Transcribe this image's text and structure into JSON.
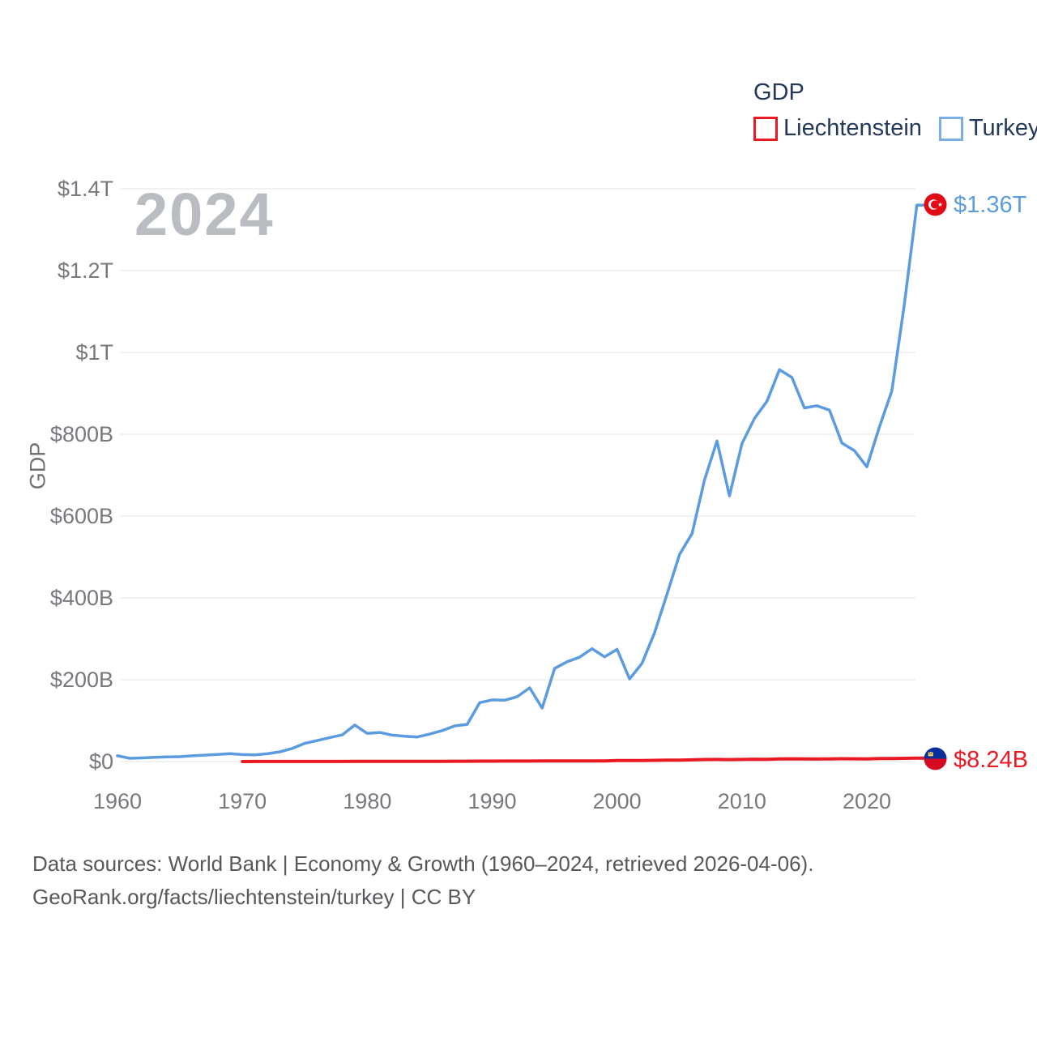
{
  "legend": {
    "title": "GDP",
    "items": [
      {
        "label": "Liechtenstein",
        "color": "#ea1a24"
      },
      {
        "label": "Turkey",
        "color": "#5b9be0"
      }
    ]
  },
  "watermark": "2024",
  "y_axis": {
    "label": "GDP",
    "ticks": [
      {
        "value_b": 0,
        "label": "$0"
      },
      {
        "value_b": 200,
        "label": "$200B"
      },
      {
        "value_b": 400,
        "label": "$400B"
      },
      {
        "value_b": 600,
        "label": "$600B"
      },
      {
        "value_b": 800,
        "label": "$800B"
      },
      {
        "value_b": 1000,
        "label": "$1T"
      },
      {
        "value_b": 1200,
        "label": "$1.2T"
      },
      {
        "value_b": 1400,
        "label": "$1.4T"
      }
    ]
  },
  "x_axis": {
    "ticks": [
      {
        "value": 1960,
        "label": "1960"
      },
      {
        "value": 1970,
        "label": "1970"
      },
      {
        "value": 1980,
        "label": "1980"
      },
      {
        "value": 1990,
        "label": "1990"
      },
      {
        "value": 2000,
        "label": "2000"
      },
      {
        "value": 2010,
        "label": "2010"
      },
      {
        "value": 2020,
        "label": "2020"
      }
    ]
  },
  "end_labels": {
    "turkey": "$1.36T",
    "liechtenstein": "$8.24B"
  },
  "footer": {
    "line1": "Data sources: World Bank | Economy & Growth (1960–2024, retrieved 2026-04-06).",
    "line2": "GeoRank.org/facts/liechtenstein/turkey | CC BY"
  },
  "chart_data": {
    "type": "line",
    "title": "GDP",
    "ylabel": "GDP",
    "unit": "USD billions",
    "xlim": [
      1960,
      2024
    ],
    "ylim_usd_billions": [
      0,
      1400
    ],
    "grid": "horizontal",
    "legend_position": "top-right",
    "x": [
      1960,
      1961,
      1962,
      1963,
      1964,
      1965,
      1966,
      1967,
      1968,
      1969,
      1970,
      1971,
      1972,
      1973,
      1974,
      1975,
      1976,
      1977,
      1978,
      1979,
      1980,
      1981,
      1982,
      1983,
      1984,
      1985,
      1986,
      1987,
      1988,
      1989,
      1990,
      1991,
      1992,
      1993,
      1994,
      1995,
      1996,
      1997,
      1998,
      1999,
      2000,
      2001,
      2002,
      2003,
      2004,
      2005,
      2006,
      2007,
      2008,
      2009,
      2010,
      2011,
      2012,
      2013,
      2014,
      2015,
      2016,
      2017,
      2018,
      2019,
      2020,
      2021,
      2022,
      2023,
      2024
    ],
    "series": [
      {
        "name": "Liechtenstein",
        "color": "#ea1a24",
        "end_value_label": "$8.24B",
        "values": [
          null,
          null,
          null,
          null,
          null,
          null,
          null,
          null,
          null,
          null,
          0.09,
          0.11,
          0.13,
          0.17,
          0.19,
          0.18,
          0.2,
          0.23,
          0.29,
          0.33,
          0.42,
          0.38,
          0.4,
          0.41,
          0.4,
          0.44,
          0.62,
          0.79,
          0.87,
          0.92,
          1.07,
          1.12,
          1.19,
          1.22,
          1.39,
          1.62,
          1.6,
          1.47,
          1.61,
          1.65,
          2.48,
          2.56,
          2.66,
          2.91,
          3.34,
          3.66,
          4.21,
          4.87,
          5.08,
          4.79,
          5.08,
          5.74,
          5.46,
          6.39,
          6.66,
          6.27,
          6.21,
          6.55,
          6.88,
          6.68,
          6.37,
          7.57,
          7.37,
          7.95,
          8.24
        ]
      },
      {
        "name": "Turkey",
        "color": "#5b9be0",
        "end_value_label": "$1.36T",
        "values": [
          14.0,
          8.0,
          8.9,
          10.4,
          11.2,
          11.9,
          14.1,
          15.7,
          17.5,
          19.5,
          17.1,
          16.3,
          19.0,
          23.7,
          32.1,
          44.6,
          51.3,
          58.7,
          65.1,
          89.4,
          68.8,
          71.0,
          64.5,
          61.7,
          60.0,
          67.2,
          75.7,
          87.2,
          90.9,
          144.0,
          150.7,
          150.0,
          158.5,
          180.2,
          130.7,
          227.5,
          243.9,
          255.1,
          275.8,
          255.9,
          274.3,
          201.8,
          240.2,
          314.6,
          408.9,
          506.3,
          557.1,
          688.3,
          783.3,
          649.3,
          777.0,
          838.8,
          880.6,
          957.8,
          938.9,
          864.3,
          869.7,
          859.0,
          778.5,
          759.9,
          720.3,
          817.5,
          905.8,
          1118.0,
          1360.0
        ]
      }
    ]
  }
}
